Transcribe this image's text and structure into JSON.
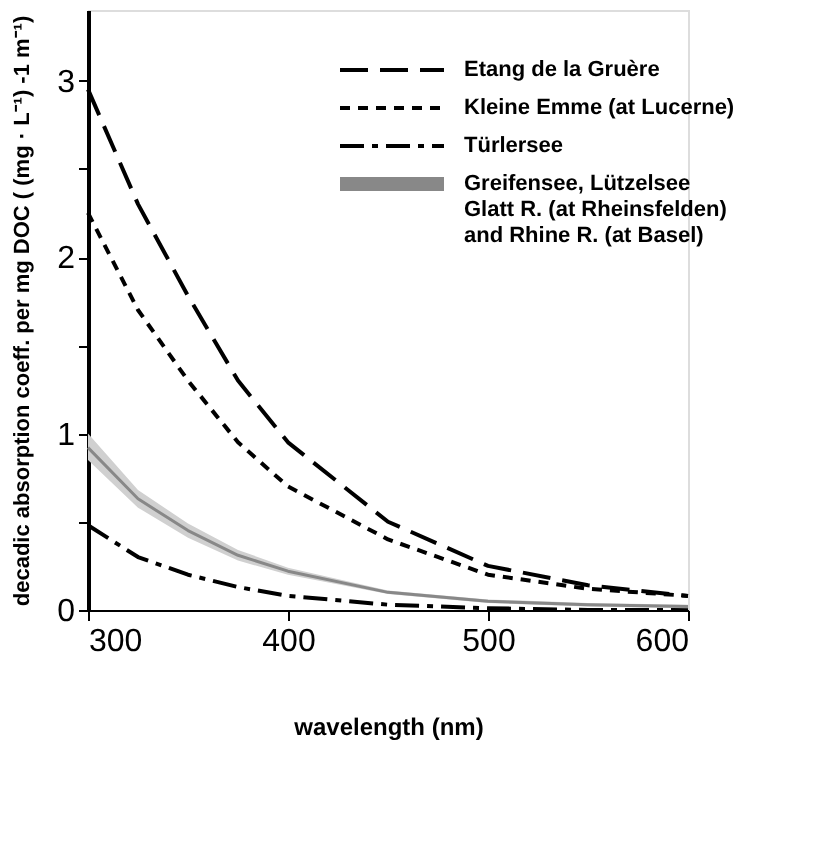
{
  "chart_data": {
    "type": "line",
    "xlabel": "wavelength (nm)",
    "ylabel": "decadic absorption coeff. per mg DOC ( (mg · L⁻¹) -1 m⁻¹)",
    "x": [
      300,
      325,
      350,
      375,
      400,
      450,
      500,
      550,
      600
    ],
    "xlim": [
      300,
      600
    ],
    "xticks": [
      300,
      400,
      500,
      600
    ],
    "ylim": [
      0,
      3.4
    ],
    "yticks": [
      0,
      {
        "value": 0.5,
        "label": null
      },
      1,
      {
        "value": 1.5,
        "label": null
      },
      2,
      {
        "value": 2.5,
        "label": null
      },
      3
    ],
    "grid": false,
    "legend": "top right",
    "marker": "none",
    "series": [
      {
        "name": "Etang de la Gruère",
        "color": "#000000",
        "line_style": "dashed",
        "values": [
          2.95,
          2.3,
          1.78,
          1.3,
          0.95,
          0.5,
          0.25,
          0.14,
          0.08
        ]
      },
      {
        "name": "Kleine Emme (at Lucerne)",
        "color": "#000000",
        "line_style": "dotted",
        "values": [
          2.25,
          1.7,
          1.3,
          0.95,
          0.7,
          0.4,
          0.2,
          0.12,
          0.08
        ]
      },
      {
        "name": "Türlersee",
        "color": "#000000",
        "line_style": "dashdot",
        "values": [
          0.48,
          0.3,
          0.2,
          0.13,
          0.08,
          0.03,
          0.01,
          0.0,
          0.0
        ]
      },
      {
        "name": "Greifensee, Lützelsee\nGlatt R. (at Rheinsfelden)\nand Rhine R. (at Basel)",
        "color": "#888888",
        "line_style": "solid",
        "values": [
          0.92,
          0.63,
          0.45,
          0.31,
          0.22,
          0.1,
          0.05,
          0.03,
          0.02
        ],
        "lower": [
          0.85,
          0.58,
          0.41,
          0.28,
          0.2,
          0.09,
          0.04,
          0.02,
          0.01
        ],
        "upper": [
          1.0,
          0.68,
          0.49,
          0.34,
          0.24,
          0.11,
          0.06,
          0.04,
          0.03
        ]
      }
    ]
  }
}
